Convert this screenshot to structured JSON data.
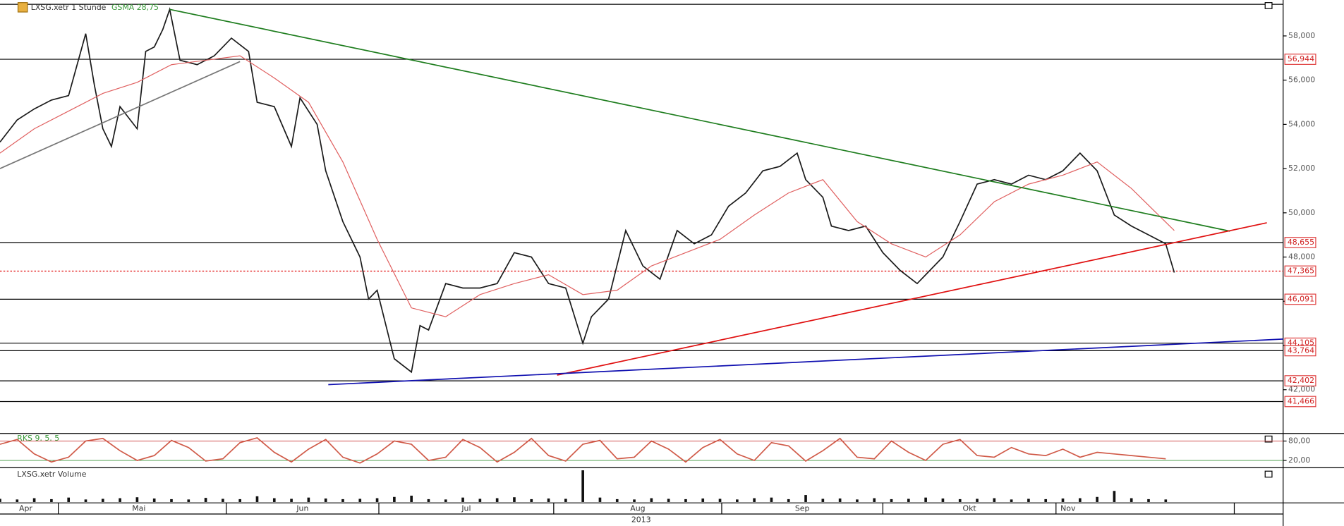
{
  "chart_data": [
    {
      "type": "line",
      "title": "LXSG.xetr 1 Stunde",
      "xlabel": "2013",
      "xlim": [
        0,
        149.7
      ],
      "ylim": [
        40.06,
        59.43
      ],
      "yticks": [
        {
          "value": 42,
          "label": "42,000"
        },
        {
          "value": 44,
          "label": "44,000"
        },
        {
          "value": 46,
          "label": "46,000"
        },
        {
          "value": 48,
          "label": "48,000"
        },
        {
          "value": 50,
          "label": "50,000"
        },
        {
          "value": 52,
          "label": "52,000"
        },
        {
          "value": 54,
          "label": "54,000"
        },
        {
          "value": 56,
          "label": "56,000"
        },
        {
          "value": 58,
          "label": "58,000"
        }
      ],
      "xticks": [
        {
          "value": 3,
          "label": "Apr"
        },
        {
          "value": 16.2,
          "label": "Mai"
        },
        {
          "value": 35.3,
          "label": "Jun"
        },
        {
          "value": 54.4,
          "label": "Jul"
        },
        {
          "value": 74.4,
          "label": "Aug"
        },
        {
          "value": 93.6,
          "label": "Sep"
        },
        {
          "value": 113.1,
          "label": "Okt"
        },
        {
          "value": 124.6,
          "label": "Nov"
        }
      ],
      "month_starts": [
        6.8,
        26.4,
        44.2,
        64.6,
        84.2,
        103,
        123.2,
        144
      ],
      "levels": [
        {
          "value": 56.944,
          "label": "56,944",
          "color": "#000"
        },
        {
          "value": 48.655,
          "label": "48,655",
          "color": "#000"
        },
        {
          "value": 47.365,
          "label": "47,365",
          "color": "#e00000",
          "style": "dotted"
        },
        {
          "value": 46.091,
          "label": "46,091",
          "color": "#000"
        },
        {
          "value": 44.105,
          "label": "44,105",
          "color": "#000"
        },
        {
          "value": 43.764,
          "label": "43,764",
          "color": "#000"
        },
        {
          "value": 42.402,
          "label": "42,402",
          "color": "#000"
        },
        {
          "value": 41.466,
          "label": "41,466",
          "color": "#000"
        }
      ],
      "trendlines": [
        {
          "color": "#1e7d1e",
          "x": [
            19.8,
            143.5
          ],
          "y": [
            59.2,
            49.17
          ]
        },
        {
          "color": "#e01010",
          "x": [
            65,
            147.8
          ],
          "y": [
            42.66,
            49.55
          ]
        },
        {
          "color": "#1010b0",
          "x": [
            38.3,
            149.7
          ],
          "y": [
            42.23,
            44.29
          ]
        },
        {
          "color": "#777",
          "x": [
            0,
            28
          ],
          "y": [
            52.0,
            56.84
          ]
        }
      ],
      "series": [
        {
          "color": "#1a1a1a",
          "x": [
            0,
            2,
            4,
            6,
            8,
            10,
            11,
            12,
            13,
            14,
            16,
            17,
            18,
            19,
            19.8,
            21,
            23,
            25,
            27,
            29,
            30,
            32,
            34,
            35,
            37,
            38,
            40,
            42,
            43,
            44,
            46,
            48,
            49,
            50,
            52,
            54,
            56,
            58,
            60,
            62,
            64,
            66,
            68,
            69,
            71,
            73,
            75,
            77,
            79,
            81,
            83,
            85,
            87,
            89,
            91,
            93,
            94,
            96,
            97,
            99,
            101,
            103,
            105,
            107,
            108,
            110,
            112,
            114,
            116,
            118,
            120,
            122,
            124,
            126,
            128,
            130,
            132,
            134,
            136,
            137
          ],
          "values": [
            53.2,
            54.2,
            54.7,
            55.1,
            55.3,
            58.1,
            55.8,
            53.8,
            53.0,
            54.8,
            53.8,
            57.3,
            57.5,
            58.3,
            59.2,
            56.9,
            56.7,
            57.1,
            57.9,
            57.3,
            55.0,
            54.8,
            53.0,
            55.2,
            54.0,
            51.9,
            49.6,
            48.0,
            46.1,
            46.5,
            43.4,
            42.8,
            44.9,
            44.7,
            46.8,
            46.6,
            46.6,
            46.8,
            48.2,
            48.0,
            46.8,
            46.6,
            44.1,
            45.3,
            46.1,
            49.2,
            47.6,
            47.0,
            49.2,
            48.6,
            49.0,
            50.3,
            50.9,
            51.9,
            52.1,
            52.7,
            51.5,
            50.7,
            49.4,
            49.2,
            49.4,
            48.2,
            47.4,
            46.8,
            47.2,
            48.0,
            49.6,
            51.3,
            51.5,
            51.3,
            51.7,
            51.5,
            51.9,
            52.7,
            51.9,
            49.9,
            49.4,
            49.0,
            48.6,
            47.3
          ]
        },
        {
          "name": "GSMA 28,75",
          "color": "#e06060",
          "x": [
            0,
            4,
            8,
            12,
            16,
            20,
            24,
            28,
            32,
            36,
            40,
            44,
            48,
            52,
            56,
            60,
            64,
            68,
            72,
            76,
            80,
            84,
            88,
            92,
            96,
            100,
            104,
            108,
            112,
            116,
            120,
            124,
            128,
            132,
            137
          ],
          "values": [
            52.7,
            53.8,
            54.6,
            55.4,
            55.9,
            56.7,
            56.9,
            57.1,
            56.1,
            55.0,
            52.3,
            48.8,
            45.7,
            45.3,
            46.3,
            46.8,
            47.2,
            46.3,
            46.5,
            47.6,
            48.2,
            48.8,
            49.9,
            50.9,
            51.5,
            49.6,
            48.6,
            48.0,
            49.0,
            50.5,
            51.3,
            51.7,
            52.3,
            51.1,
            49.2
          ]
        }
      ]
    },
    {
      "type": "line",
      "title": "RKS 9, 5, 5",
      "xlim": [
        0,
        149.7
      ],
      "ylim": [
        0,
        100
      ],
      "yticks": [
        {
          "value": 80,
          "label": "80,00"
        },
        {
          "value": 20,
          "label": "20,00"
        }
      ],
      "series": [
        {
          "color": "#d05a48",
          "x": [
            0,
            2,
            4,
            6,
            8,
            10,
            12,
            14,
            16,
            18,
            20,
            22,
            24,
            26,
            28,
            30,
            32,
            34,
            36,
            38,
            40,
            42,
            44,
            46,
            48,
            50,
            52,
            54,
            56,
            58,
            60,
            62,
            64,
            66,
            68,
            70,
            72,
            74,
            76,
            78,
            80,
            82,
            84,
            86,
            88,
            90,
            92,
            94,
            96,
            98,
            100,
            102,
            104,
            106,
            108,
            110,
            112,
            114,
            116,
            118,
            120,
            122,
            124,
            126,
            128,
            130,
            132,
            134,
            136
          ],
          "values": [
            70,
            85,
            40,
            15,
            30,
            80,
            88,
            50,
            20,
            35,
            82,
            60,
            18,
            25,
            75,
            90,
            45,
            15,
            55,
            85,
            30,
            12,
            40,
            80,
            70,
            20,
            30,
            85,
            60,
            15,
            45,
            88,
            35,
            18,
            70,
            82,
            25,
            30,
            80,
            55,
            15,
            60,
            85,
            40,
            20,
            75,
            65,
            18,
            50,
            88,
            30,
            25,
            80,
            45,
            20,
            70,
            85,
            35,
            30,
            60,
            40,
            35,
            55,
            30,
            45,
            40,
            35,
            30,
            25
          ]
        }
      ]
    },
    {
      "type": "bar",
      "title": "LXSG.xetr Volume",
      "xlim": [
        0,
        149.7
      ],
      "ylim": [
        0,
        100
      ],
      "color": "#111",
      "x": [
        0,
        2,
        4,
        6,
        8,
        10,
        12,
        14,
        16,
        18,
        20,
        22,
        24,
        26,
        28,
        30,
        32,
        34,
        36,
        38,
        40,
        42,
        44,
        46,
        48,
        50,
        52,
        54,
        56,
        58,
        60,
        62,
        64,
        66,
        68,
        70,
        72,
        74,
        76,
        78,
        80,
        82,
        84,
        86,
        88,
        90,
        92,
        94,
        96,
        98,
        100,
        102,
        104,
        106,
        108,
        110,
        112,
        114,
        116,
        118,
        120,
        122,
        124,
        126,
        128,
        130,
        132,
        134,
        136
      ],
      "values": [
        10,
        8,
        12,
        9,
        14,
        8,
        10,
        12,
        15,
        11,
        9,
        8,
        13,
        10,
        9,
        18,
        12,
        10,
        14,
        11,
        9,
        10,
        12,
        16,
        20,
        9,
        8,
        14,
        10,
        12,
        15,
        9,
        11,
        10,
        100,
        14,
        9,
        8,
        12,
        10,
        9,
        11,
        10,
        8,
        12,
        14,
        9,
        22,
        10,
        11,
        8,
        12,
        9,
        10,
        14,
        11,
        9,
        10,
        12,
        8,
        10,
        9,
        11,
        12,
        16,
        35,
        12,
        9,
        8
      ]
    }
  ]
}
